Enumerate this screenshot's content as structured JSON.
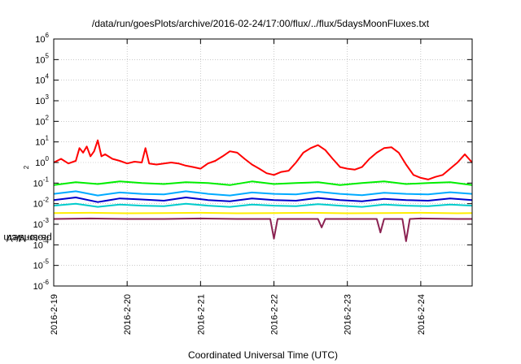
{
  "chart_data": {
    "type": "line",
    "title": "/data/run/goesPlots/archive/2016-02-24/17:00/flux/../flux/5daysMoonFluxes.txt",
    "xlabel": "Coordinated Universal Time (UTC)",
    "ylabel_parts": [
      "protons/cm",
      "2",
      "-s-sr-MeV"
    ],
    "yscale": "log",
    "ylim": [
      1e-06,
      1000000.0
    ],
    "y_ticks": [
      {
        "base": "10",
        "exp": "6",
        "value": 1000000.0
      },
      {
        "base": "10",
        "exp": "5",
        "value": 100000.0
      },
      {
        "base": "10",
        "exp": "4",
        "value": 10000.0
      },
      {
        "base": "10",
        "exp": "3",
        "value": 1000.0
      },
      {
        "base": "10",
        "exp": "2",
        "value": 100.0
      },
      {
        "base": "10",
        "exp": "1",
        "value": 10.0
      },
      {
        "base": "10",
        "exp": "0",
        "value": 1
      },
      {
        "base": "10",
        "exp": "-1",
        "value": 0.1
      },
      {
        "base": "10",
        "exp": "-2",
        "value": 0.01
      },
      {
        "base": "10",
        "exp": "-3",
        "value": 0.001
      },
      {
        "base": "10",
        "exp": "-4",
        "value": 0.0001
      },
      {
        "base": "10",
        "exp": "-5",
        "value": 1e-05
      },
      {
        "base": "10",
        "exp": "-6",
        "value": 1e-06
      }
    ],
    "x_tick_labels": [
      "2016-2-19",
      "2016-2-20",
      "2016-2-21",
      "2016-2-22",
      "2016-2-23",
      "2016-2-24"
    ],
    "x_tick_days": [
      0,
      1,
      2,
      3,
      4,
      5
    ],
    "x_range_days": [
      0,
      5.7
    ],
    "grid": true,
    "series": [
      {
        "color": "#ff0000",
        "x": [
          0,
          0.1,
          0.2,
          0.3,
          0.35,
          0.4,
          0.45,
          0.5,
          0.55,
          0.6,
          0.65,
          0.7,
          0.8,
          0.9,
          1.0,
          1.1,
          1.2,
          1.25,
          1.3,
          1.4,
          1.5,
          1.6,
          1.7,
          1.8,
          1.9,
          2.0,
          2.1,
          2.2,
          2.3,
          2.4,
          2.5,
          2.6,
          2.7,
          2.8,
          2.9,
          3.0,
          3.1,
          3.2,
          3.3,
          3.4,
          3.5,
          3.6,
          3.7,
          3.8,
          3.9,
          4.0,
          4.1,
          4.2,
          4.3,
          4.4,
          4.5,
          4.6,
          4.7,
          4.8,
          4.9,
          5.0,
          5.1,
          5.2,
          5.3,
          5.4,
          5.5,
          5.6,
          5.7
        ],
        "y": [
          1.0,
          1.5,
          0.9,
          1.2,
          5.0,
          3.0,
          6.0,
          2.0,
          3.5,
          12.0,
          2.0,
          2.5,
          1.5,
          1.2,
          0.9,
          1.1,
          1.0,
          5.0,
          0.9,
          0.8,
          0.9,
          1.0,
          0.9,
          0.7,
          0.6,
          0.5,
          0.9,
          1.2,
          2.0,
          3.5,
          3.0,
          1.5,
          0.8,
          0.5,
          0.3,
          0.25,
          0.35,
          0.4,
          1.0,
          3.0,
          5.0,
          7.0,
          4.0,
          1.5,
          0.6,
          0.5,
          0.45,
          0.6,
          1.5,
          3.0,
          5.0,
          5.5,
          3.0,
          0.8,
          0.25,
          0.18,
          0.15,
          0.2,
          0.25,
          0.5,
          1.0,
          2.5,
          1.0
        ]
      },
      {
        "color": "#00ee00",
        "x": [
          0,
          0.3,
          0.6,
          0.9,
          1.2,
          1.5,
          1.8,
          2.1,
          2.4,
          2.7,
          3.0,
          3.3,
          3.6,
          3.9,
          4.2,
          4.5,
          4.8,
          5.1,
          5.4,
          5.7
        ],
        "y": [
          0.08,
          0.11,
          0.09,
          0.12,
          0.1,
          0.09,
          0.11,
          0.1,
          0.08,
          0.12,
          0.09,
          0.1,
          0.11,
          0.08,
          0.1,
          0.12,
          0.09,
          0.1,
          0.11,
          0.08
        ]
      },
      {
        "color": "#00aaff",
        "x": [
          0,
          0.3,
          0.6,
          0.9,
          1.2,
          1.5,
          1.8,
          2.1,
          2.4,
          2.7,
          3.0,
          3.3,
          3.6,
          3.9,
          4.2,
          4.5,
          4.8,
          5.1,
          5.4,
          5.7
        ],
        "y": [
          0.03,
          0.04,
          0.025,
          0.035,
          0.03,
          0.028,
          0.04,
          0.03,
          0.025,
          0.035,
          0.03,
          0.028,
          0.038,
          0.03,
          0.026,
          0.034,
          0.03,
          0.028,
          0.036,
          0.03
        ]
      },
      {
        "color": "#0000cc",
        "x": [
          0,
          0.3,
          0.6,
          0.9,
          1.2,
          1.5,
          1.8,
          2.1,
          2.4,
          2.7,
          3.0,
          3.3,
          3.6,
          3.9,
          4.2,
          4.5,
          4.8,
          5.1,
          5.4,
          5.7
        ],
        "y": [
          0.015,
          0.02,
          0.012,
          0.018,
          0.016,
          0.014,
          0.02,
          0.015,
          0.013,
          0.018,
          0.015,
          0.014,
          0.019,
          0.015,
          0.013,
          0.017,
          0.015,
          0.014,
          0.018,
          0.015
        ]
      },
      {
        "color": "#00cccc",
        "x": [
          0,
          0.3,
          0.6,
          0.9,
          1.2,
          1.5,
          1.8,
          2.1,
          2.4,
          2.7,
          3.0,
          3.3,
          3.6,
          3.9,
          4.2,
          4.5,
          4.8,
          5.1,
          5.4,
          5.7
        ],
        "y": [
          0.008,
          0.01,
          0.007,
          0.009,
          0.008,
          0.0075,
          0.01,
          0.008,
          0.007,
          0.009,
          0.008,
          0.0075,
          0.0095,
          0.008,
          0.007,
          0.009,
          0.008,
          0.0075,
          0.009,
          0.008
        ]
      },
      {
        "color": "#ffee00",
        "x": [
          0,
          0.5,
          1.0,
          1.5,
          2.0,
          2.5,
          3.0,
          3.5,
          4.0,
          4.5,
          5.0,
          5.5,
          5.7
        ],
        "y": [
          0.0035,
          0.0036,
          0.0034,
          0.0035,
          0.0036,
          0.0034,
          0.0035,
          0.0036,
          0.0034,
          0.0035,
          0.0036,
          0.0034,
          0.0035
        ]
      },
      {
        "color": "#8b2252",
        "x": [
          0,
          0.5,
          1.0,
          1.5,
          2.0,
          2.5,
          2.95,
          3.0,
          3.05,
          3.5,
          3.6,
          3.65,
          3.7,
          4.0,
          4.4,
          4.45,
          4.5,
          4.75,
          4.8,
          4.85,
          5.0,
          5.5,
          5.7
        ],
        "y": [
          0.0018,
          0.0019,
          0.0018,
          0.0018,
          0.0019,
          0.0018,
          0.0018,
          0.0002,
          0.0018,
          0.0018,
          0.0018,
          0.0007,
          0.0018,
          0.0018,
          0.0018,
          0.0004,
          0.0018,
          0.0018,
          0.00015,
          0.0018,
          0.0019,
          0.0018,
          0.0018
        ]
      }
    ]
  }
}
